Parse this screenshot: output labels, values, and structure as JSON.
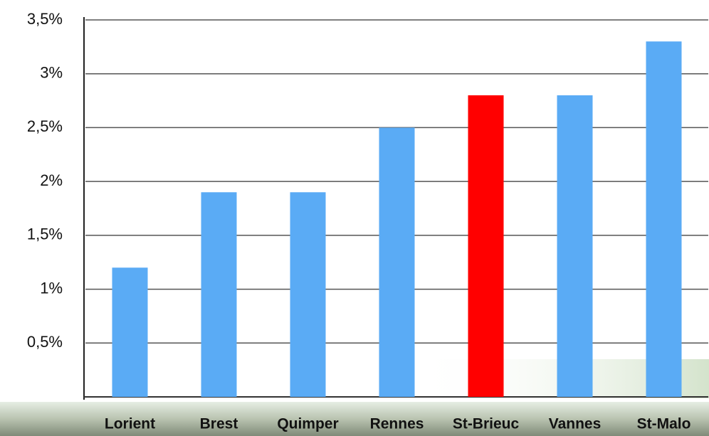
{
  "chart_data": {
    "type": "bar",
    "categories": [
      "Lorient",
      "Brest",
      "Quimper",
      "Rennes",
      "St-Brieuc",
      "Vannes",
      "St-Malo"
    ],
    "values": [
      1.2,
      1.9,
      1.9,
      2.5,
      2.8,
      2.8,
      3.3
    ],
    "colors": [
      "#5aabf5",
      "#5aabf5",
      "#5aabf5",
      "#5aabf5",
      "#ff0000",
      "#5aabf5",
      "#5aabf5"
    ],
    "ylim": [
      0,
      3.5
    ],
    "yticks": [
      {
        "value": 0.5,
        "label": "0,5%"
      },
      {
        "value": 1,
        "label": "1%"
      },
      {
        "value": 1.5,
        "label": "1,5%"
      },
      {
        "value": 2,
        "label": "2%"
      },
      {
        "value": 2.5,
        "label": "2,5%"
      },
      {
        "value": 3,
        "label": "3%"
      },
      {
        "value": 3.5,
        "label": "3,5%"
      }
    ],
    "grid": true
  }
}
